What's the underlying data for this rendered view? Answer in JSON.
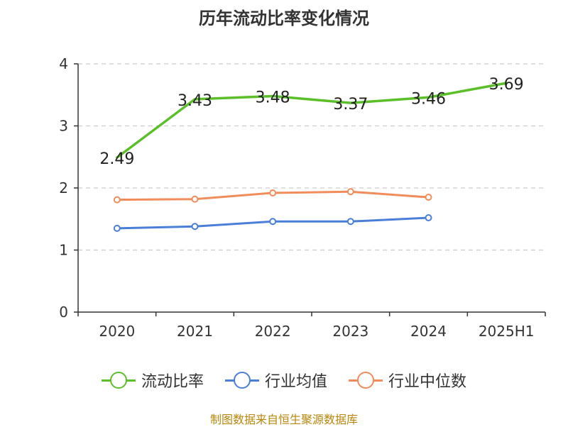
{
  "chart_data": {
    "type": "line",
    "title": "历年流动比率变化情况",
    "categories": [
      "2020",
      "2021",
      "2022",
      "2023",
      "2024",
      "2025H1"
    ],
    "ylim": [
      0,
      4
    ],
    "yticks": [
      "0",
      "1",
      "2",
      "3",
      "4"
    ],
    "grid": true,
    "legend_position": "bottom",
    "series": [
      {
        "name": "流动比率",
        "color": "#5bbf2a",
        "values": [
          2.49,
          3.43,
          3.48,
          3.37,
          3.46,
          3.69
        ],
        "labels": [
          "2.49",
          "3.43",
          "3.48",
          "3.37",
          "3.46",
          "3.69"
        ],
        "show_markers": false,
        "show_labels": true
      },
      {
        "name": "行业均值",
        "color": "#4a7fd8",
        "values": [
          1.35,
          1.38,
          1.46,
          1.46,
          1.52,
          null
        ],
        "show_markers": true,
        "show_labels": false
      },
      {
        "name": "行业中位数",
        "color": "#f28c5a",
        "values": [
          1.81,
          1.82,
          1.92,
          1.94,
          1.85,
          null
        ],
        "show_markers": true,
        "show_labels": false
      }
    ]
  },
  "source_text": "制图数据来自恒生聚源数据库"
}
